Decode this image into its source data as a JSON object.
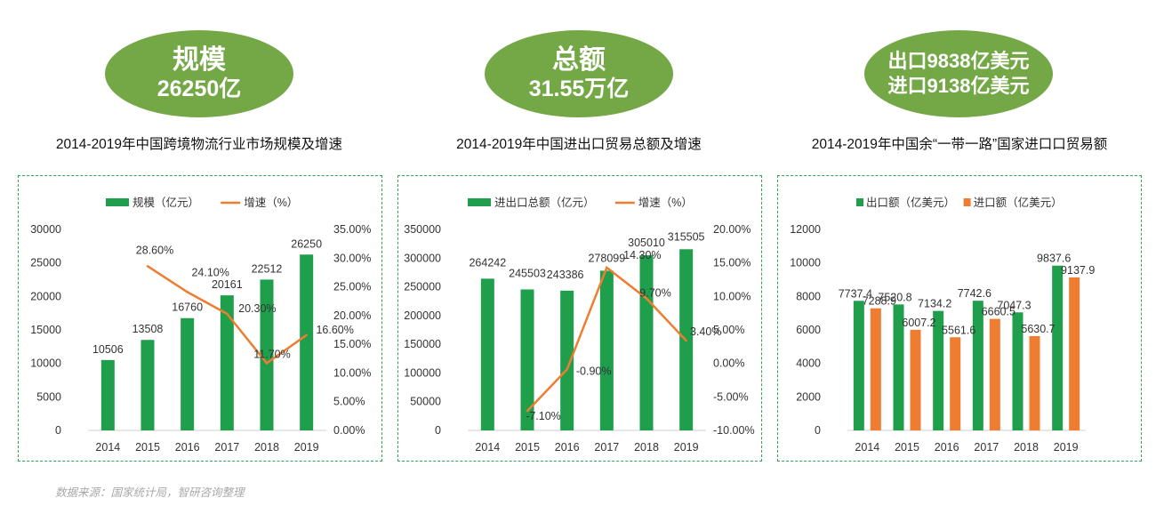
{
  "cards": [
    {
      "line1": "规模",
      "line2": "26250亿",
      "title": "2014-2019年中国跨境物流行业市场规模及增速"
    },
    {
      "line1": "总额",
      "line2": "31.55万亿",
      "title": "2014-2019年中国进出口贸易总额及增速"
    },
    {
      "line1": "出口9838亿美元",
      "line2": "进口9138亿美元",
      "title": "2014-2019年中国余“一带一路”国家进口口贸易额"
    }
  ],
  "source": "数据来源：国家统计局，智研咨询整理",
  "colors": {
    "green": "#1f9e4b",
    "orange": "#ee7d31",
    "ellipse": "#74a846",
    "border": "#31a354"
  },
  "chart_data": [
    {
      "type": "bar",
      "categories": [
        "2014",
        "2015",
        "2016",
        "2017",
        "2018",
        "2019"
      ],
      "series": [
        {
          "name": "规模（亿元）",
          "type": "bar",
          "axis": "left",
          "values": [
            10506,
            13508,
            16760,
            20161,
            22512,
            26250
          ],
          "labels": [
            "10506",
            "13508",
            "16760",
            "20161",
            "22512",
            "26250"
          ]
        },
        {
          "name": "增速（%）",
          "type": "line",
          "axis": "right",
          "values": [
            null,
            28.6,
            24.1,
            20.3,
            11.7,
            16.6
          ],
          "labels": [
            "",
            "28.60%",
            "24.10%",
            "20.30%",
            "11.70%",
            "16.60%"
          ]
        }
      ],
      "y_left": {
        "min": 0,
        "max": 30000,
        "ticks": [
          "0",
          "5000",
          "10000",
          "15000",
          "20000",
          "25000",
          "30000"
        ]
      },
      "y_right": {
        "min": 0,
        "max": 35,
        "ticks": [
          "0.00%",
          "5.00%",
          "10.00%",
          "15.00%",
          "20.00%",
          "25.00%",
          "30.00%",
          "35.00%"
        ]
      },
      "legend": "top"
    },
    {
      "type": "bar",
      "categories": [
        "2014",
        "2015",
        "2016",
        "2017",
        "2018",
        "2019"
      ],
      "series": [
        {
          "name": "进出口总额（亿元）",
          "type": "bar",
          "axis": "left",
          "values": [
            264242,
            245503,
            243386,
            278099,
            305010,
            315505
          ],
          "labels": [
            "264242",
            "245503",
            "243386",
            "278099",
            "305010",
            "315505"
          ]
        },
        {
          "name": "增速（%）",
          "type": "line",
          "axis": "right",
          "values": [
            null,
            -7.1,
            -0.9,
            14.3,
            9.7,
            3.4
          ],
          "labels": [
            "",
            "-7.10%",
            "-0.90%",
            "14.30%",
            "9.70%",
            "3.40%"
          ]
        }
      ],
      "y_left": {
        "min": 0,
        "max": 350000,
        "ticks": [
          "0",
          "50000",
          "100000",
          "150000",
          "200000",
          "250000",
          "300000",
          "350000"
        ]
      },
      "y_right": {
        "min": -10,
        "max": 20,
        "ticks": [
          "-10.00%",
          "-5.00%",
          "0.00%",
          "5.00%",
          "10.00%",
          "15.00%",
          "20.00%"
        ]
      },
      "legend": "top"
    },
    {
      "type": "bar",
      "categories": [
        "2014",
        "2015",
        "2016",
        "2017",
        "2018",
        "2019"
      ],
      "series": [
        {
          "name": "出口额（亿美元）",
          "type": "bar",
          "axis": "left",
          "values": [
            7737.4,
            7520.8,
            7134.2,
            7742.6,
            7047.3,
            9837.6
          ],
          "labels": [
            "7737.4",
            "7520.8",
            "7134.2",
            "7742.6",
            "7047.3",
            "9837.6"
          ]
        },
        {
          "name": "进口额（亿美元）",
          "type": "bar",
          "axis": "left",
          "values": [
            7288.9,
            6007.2,
            5561.6,
            6660.5,
            5630.7,
            9137.9
          ],
          "labels": [
            "7288.9",
            "6007.2",
            "5561.6",
            "6660.5",
            "5630.7",
            "9137.9"
          ]
        }
      ],
      "y_left": {
        "min": 0,
        "max": 12000,
        "ticks": [
          "0",
          "2000",
          "4000",
          "6000",
          "8000",
          "10000",
          "12000"
        ]
      },
      "legend": "top"
    }
  ]
}
